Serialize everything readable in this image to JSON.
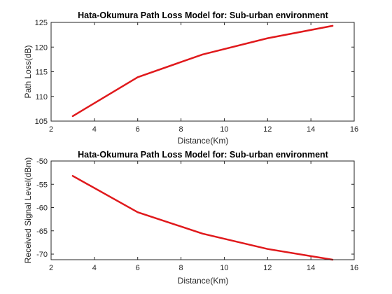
{
  "chart_data": [
    {
      "type": "line",
      "title": "Hata-Okumura Path Loss Model for: Sub-urban environment",
      "xlabel": "Distance(Km)",
      "ylabel": "Path Loss(dB)",
      "xlim": [
        2,
        16
      ],
      "ylim": [
        105,
        125
      ],
      "xticks": [
        2,
        4,
        6,
        8,
        10,
        12,
        14,
        16
      ],
      "yticks": [
        105,
        110,
        115,
        120,
        125
      ],
      "grid": false,
      "series": [
        {
          "x": [
            3,
            6,
            9,
            12,
            15
          ],
          "y": [
            106.0,
            113.9,
            118.5,
            121.8,
            124.3
          ],
          "color": "#e0191c"
        }
      ]
    },
    {
      "type": "line",
      "title": "Hata-Okumura Path Loss Model for: Sub-urban environment",
      "xlabel": "Distance(Km)",
      "ylabel": "Received Signal Level(dBm)",
      "xlim": [
        2,
        16
      ],
      "ylim": [
        -71.2,
        -50
      ],
      "xticks": [
        2,
        4,
        6,
        8,
        10,
        12,
        14,
        16
      ],
      "yticks": [
        -70,
        -65,
        -60,
        -55,
        -50
      ],
      "grid": false,
      "series": [
        {
          "x": [
            3,
            6,
            9,
            12,
            15
          ],
          "y": [
            -53.2,
            -61.0,
            -65.6,
            -68.9,
            -71.3
          ],
          "color": "#e0191c"
        }
      ]
    }
  ]
}
